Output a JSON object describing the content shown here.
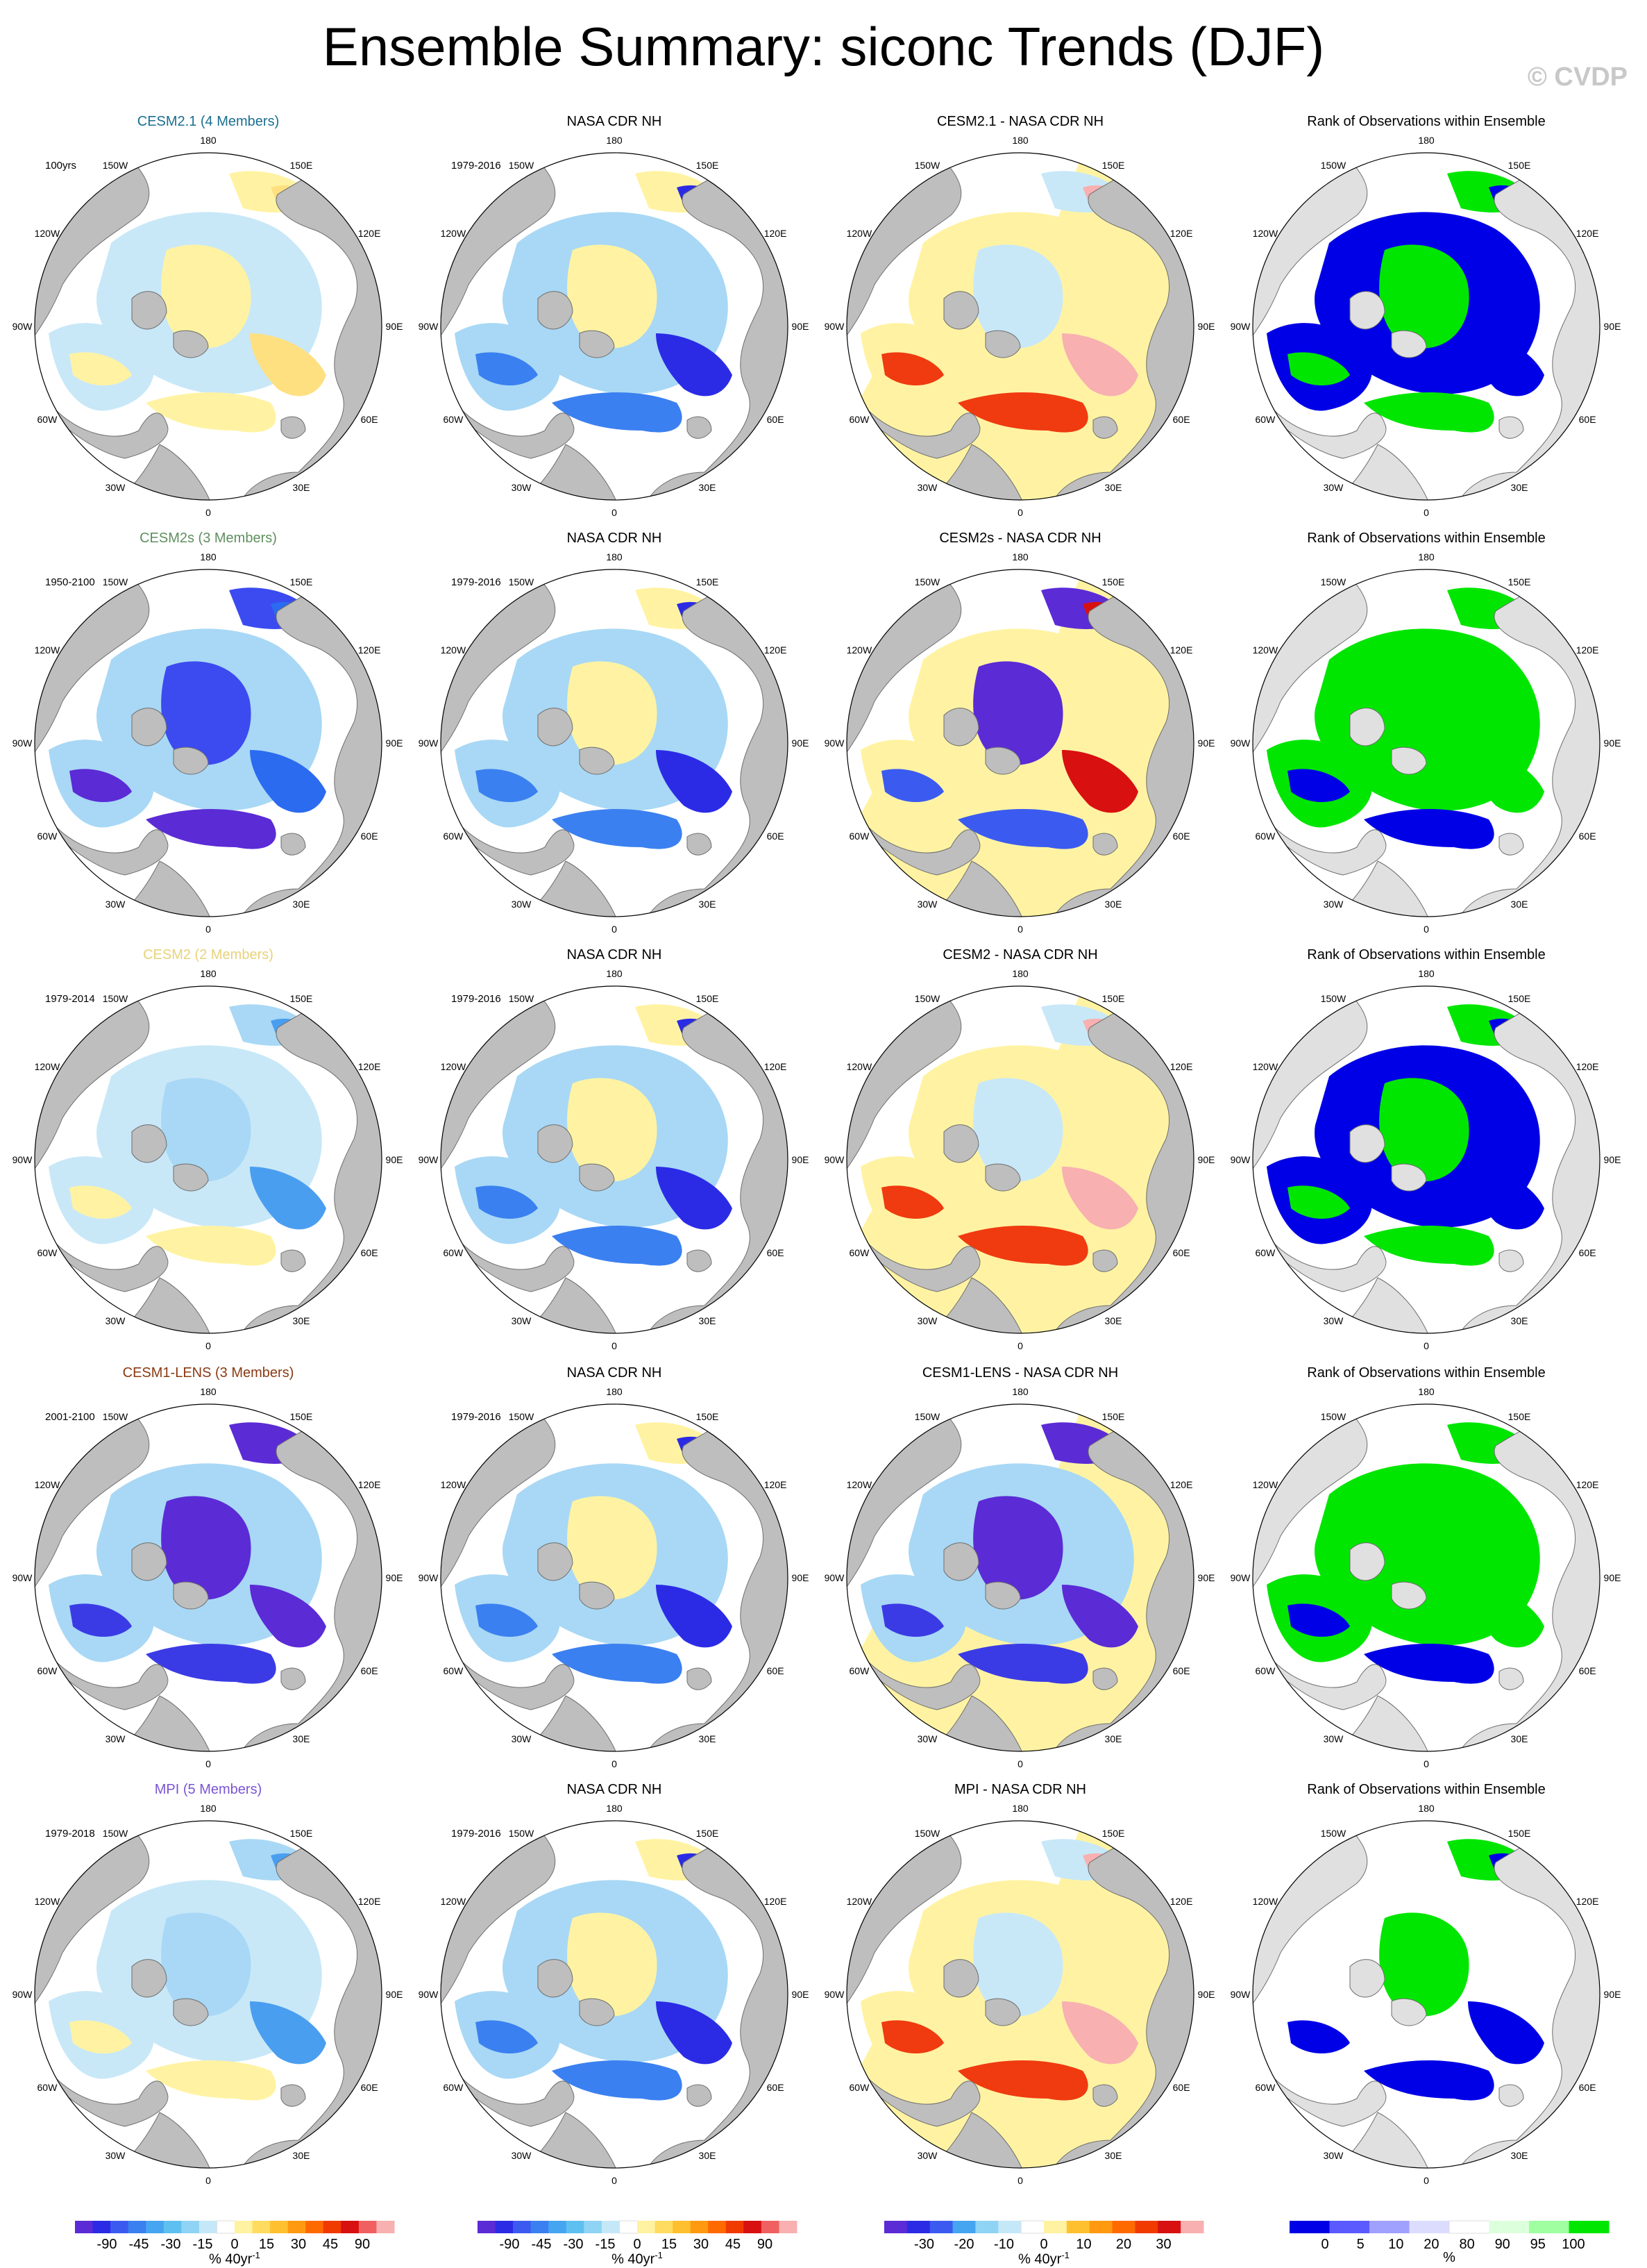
{
  "title": "Ensemble Summary: siconc Trends (DJF)",
  "watermark": "© CVDP",
  "lon_labels": [
    "180",
    "150E",
    "120E",
    "90E",
    "60E",
    "30E",
    "0",
    "30W",
    "60W",
    "90W",
    "120W",
    "150W"
  ],
  "colors": {
    "land": "#bebebe",
    "land_light": "#e0e0e0",
    "ocean": "#ffffff",
    "outline": "#6e6e6e"
  },
  "rows": [
    {
      "model": "CESM2.1 (4 Members)",
      "model_color": "#1a6f8f",
      "model_period": "100yrs",
      "obs_title": "NASA CDR NH",
      "obs_period": "1979-2016",
      "diff_title": "CESM2.1 - NASA CDR NH",
      "rank_title": "Rank of Observations within Ensemble",
      "model_pattern": "yellow",
      "diff_pattern": "warm",
      "rank_pattern": "mixed"
    },
    {
      "model": "CESM2s (3 Members)",
      "model_color": "#5f8f5f",
      "model_period": "1950-2100",
      "obs_title": "NASA CDR NH",
      "obs_period": "1979-2016",
      "diff_title": "CESM2s - NASA CDR NH",
      "rank_title": "Rank of Observations within Ensemble",
      "model_pattern": "blue",
      "diff_pattern": "cold",
      "rank_pattern": "green"
    },
    {
      "model": "CESM2 (2 Members)",
      "model_color": "#e8d27a",
      "model_period": "1979-2014",
      "obs_title": "NASA CDR NH",
      "obs_period": "1979-2016",
      "diff_title": "CESM2 - NASA CDR NH",
      "rank_title": "Rank of Observations within Ensemble",
      "model_pattern": "lightblue",
      "diff_pattern": "warm",
      "rank_pattern": "mixed"
    },
    {
      "model": "CESM1-LENS (3 Members)",
      "model_color": "#8a3a12",
      "model_period": "2001-2100",
      "obs_title": "NASA CDR NH",
      "obs_period": "1979-2016",
      "diff_title": "CESM1-LENS - NASA CDR NH",
      "rank_title": "Rank of Observations within Ensemble",
      "model_pattern": "purple",
      "diff_pattern": "purple",
      "rank_pattern": "green"
    },
    {
      "model": "MPI (5 Members)",
      "model_color": "#7a55d6",
      "model_period": "1979-2018",
      "obs_title": "NASA CDR NH",
      "obs_period": "1979-2016",
      "diff_title": "MPI - NASA CDR NH",
      "rank_title": "Rank of Observations within Ensemble",
      "model_pattern": "lightblue",
      "diff_pattern": "warm",
      "rank_pattern": "mixedwhite"
    }
  ],
  "colorbars": [
    {
      "unit": "% 40yr",
      "unit_sup": "-1",
      "ticks": [
        "-90",
        "-45",
        "-30",
        "-15",
        "0",
        "15",
        "30",
        "45",
        "90"
      ],
      "colors": [
        "#5b2bd6",
        "#2b2be6",
        "#3b5bf0",
        "#3a80f0",
        "#45a5f0",
        "#5ec0f0",
        "#8fd4f5",
        "#c4e8f8",
        "#ffffff",
        "#fff2a0",
        "#ffdc60",
        "#ffc030",
        "#ff9a10",
        "#ff6a00",
        "#f03a00",
        "#d81010",
        "#f06060",
        "#f8b0b0"
      ]
    },
    {
      "unit": "% 40yr",
      "unit_sup": "-1",
      "ticks": [
        "-90",
        "-45",
        "-30",
        "-15",
        "0",
        "15",
        "30",
        "45",
        "90"
      ],
      "colors": [
        "#5b2bd6",
        "#2b2be6",
        "#3b5bf0",
        "#3a80f0",
        "#45a5f0",
        "#5ec0f0",
        "#8fd4f5",
        "#c4e8f8",
        "#ffffff",
        "#fff2a0",
        "#ffdc60",
        "#ffc030",
        "#ff9a10",
        "#ff6a00",
        "#f03a00",
        "#d81010",
        "#f06060",
        "#f8b0b0"
      ]
    },
    {
      "unit": "% 40yr",
      "unit_sup": "-1",
      "ticks": [
        "-30",
        "-20",
        "-10",
        "0",
        "10",
        "20",
        "30"
      ],
      "colors": [
        "#5b2bd6",
        "#2b2be6",
        "#3b5bf0",
        "#45a5f0",
        "#8fd4f5",
        "#c4e8f8",
        "#ffffff",
        "#fff2a0",
        "#ffc030",
        "#ff9a10",
        "#ff6a00",
        "#f03a00",
        "#d81010",
        "#f8b0b0"
      ]
    },
    {
      "unit": "%",
      "unit_sup": "",
      "ticks": [
        "0",
        "5",
        "10",
        "20",
        "80",
        "90",
        "95",
        "100"
      ],
      "colors": [
        "#0000e6",
        "#5a5aff",
        "#a0a0ff",
        "#dcdcff",
        "#ffffff",
        "#dcffdc",
        "#a0ffa0",
        "#00e600"
      ]
    }
  ]
}
